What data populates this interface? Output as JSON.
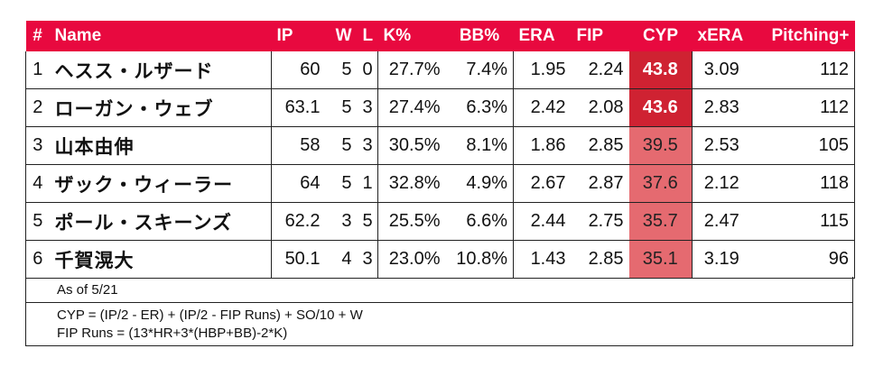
{
  "columns": [
    "#",
    "Name",
    "IP",
    "W",
    "L",
    "K%",
    "BB%",
    "ERA",
    "FIP",
    "CYP",
    "xERA",
    "Pitching+"
  ],
  "rows": [
    {
      "rank": "1",
      "name": "ヘスス・ルザード",
      "ip": "60",
      "w": "5",
      "l": "0",
      "k": "27.7%",
      "bb": "7.4%",
      "era": "1.95",
      "fip": "2.24",
      "cyp": "43.8",
      "xera": "3.09",
      "pitching": "112"
    },
    {
      "rank": "2",
      "name": "ローガン・ウェブ",
      "ip": "63.1",
      "w": "5",
      "l": "3",
      "k": "27.4%",
      "bb": "6.3%",
      "era": "2.42",
      "fip": "2.08",
      "cyp": "43.6",
      "xera": "2.83",
      "pitching": "112"
    },
    {
      "rank": "3",
      "name": "山本由伸",
      "ip": "58",
      "w": "5",
      "l": "3",
      "k": "30.5%",
      "bb": "8.1%",
      "era": "1.86",
      "fip": "2.85",
      "cyp": "39.5",
      "xera": "2.53",
      "pitching": "105"
    },
    {
      "rank": "4",
      "name": "ザック・ウィーラー",
      "ip": "64",
      "w": "5",
      "l": "1",
      "k": "32.8%",
      "bb": "4.9%",
      "era": "2.67",
      "fip": "2.87",
      "cyp": "37.6",
      "xera": "2.12",
      "pitching": "118"
    },
    {
      "rank": "5",
      "name": "ポール・スキーンズ",
      "ip": "62.2",
      "w": "3",
      "l": "5",
      "k": "25.5%",
      "bb": "6.6%",
      "era": "2.44",
      "fip": "2.75",
      "cyp": "35.7",
      "xera": "2.47",
      "pitching": "115"
    },
    {
      "rank": "6",
      "name": "千賀滉大",
      "ip": "50.1",
      "w": "4",
      "l": "3",
      "k": "23.0%",
      "bb": "10.8%",
      "era": "1.43",
      "fip": "2.85",
      "cyp": "35.1",
      "xera": "3.19",
      "pitching": "96"
    }
  ],
  "colors": {
    "header": "#e8093f",
    "cyp_hot": "#cf2232",
    "cyp_warm": "#e56a70"
  },
  "notes": {
    "as_of": "As of 5/21",
    "formula_cyp": "CYP = (IP/2 - ER) + (IP/2 - FIP Runs) + SO/10 + W",
    "formula_fip": "FIP Runs = (13*HR+3*(HBP+BB)-2*K)"
  }
}
